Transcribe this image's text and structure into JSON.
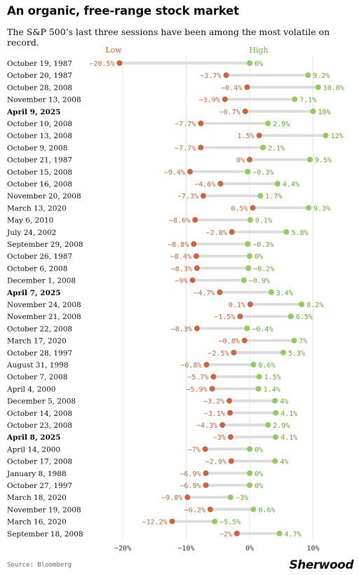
{
  "title": "An organic, free-range stock market",
  "subtitle": "The S&P 500’s last three sessions have been among the most volatile on record.",
  "source": "Source: Bloomberg",
  "brand": "Sherwood",
  "colors": {
    "low": "#d0633a",
    "high": "#8ccf5a",
    "bar": "#dddddd",
    "grid": "#e4e4e4",
    "text": "#111111"
  },
  "chart_data": {
    "type": "dot-range",
    "legend": {
      "low": "Low",
      "high": "High"
    },
    "xlim": [
      -25,
      15
    ],
    "x_ticks": [
      -20,
      -10,
      0,
      10
    ],
    "x_tick_labels": [
      "−20%",
      "−10%",
      "0%",
      "10%"
    ],
    "grid": true,
    "rows": [
      {
        "date": "October 19, 1987",
        "low": -20.5,
        "high": 0,
        "low_label": "−20.5%",
        "high_label": "0%",
        "bold": false
      },
      {
        "date": "October 20, 1987",
        "low": -3.7,
        "high": 9.2,
        "low_label": "−3.7%",
        "high_label": "9.2%",
        "bold": false
      },
      {
        "date": "October 28, 2008",
        "low": -0.4,
        "high": 10.8,
        "low_label": "−0.4%",
        "high_label": "10.8%",
        "bold": false
      },
      {
        "date": "November 13, 2008",
        "low": -3.9,
        "high": 7.1,
        "low_label": "−3.9%",
        "high_label": "7.1%",
        "bold": false
      },
      {
        "date": "April 9, 2025",
        "low": -0.7,
        "high": 10,
        "low_label": "−0.7%",
        "high_label": "10%",
        "bold": true
      },
      {
        "date": "October 10, 2008",
        "low": -7.7,
        "high": 2.9,
        "low_label": "−7.7%",
        "high_label": "2.9%",
        "bold": false
      },
      {
        "date": "October 13, 2008",
        "low": 1.5,
        "high": 12,
        "low_label": "1.5%",
        "high_label": "12%",
        "bold": false
      },
      {
        "date": "October 9, 2008",
        "low": -7.7,
        "high": 2.1,
        "low_label": "−7.7%",
        "high_label": "2.1%",
        "bold": false
      },
      {
        "date": "October 21, 1987",
        "low": 0,
        "high": 9.5,
        "low_label": "0%",
        "high_label": "9.5%",
        "bold": false
      },
      {
        "date": "October 15, 2008",
        "low": -9.4,
        "high": -0.3,
        "low_label": "−9.4%",
        "high_label": "−0.3%",
        "bold": false
      },
      {
        "date": "October 16, 2008",
        "low": -4.6,
        "high": 4.4,
        "low_label": "−4.6%",
        "high_label": "4.4%",
        "bold": false
      },
      {
        "date": "November 20, 2008",
        "low": -7.3,
        "high": 1.7,
        "low_label": "−7.3%",
        "high_label": "1.7%",
        "bold": false
      },
      {
        "date": "March 13, 2020",
        "low": 0.5,
        "high": 9.3,
        "low_label": "0.5%",
        "high_label": "9.3%",
        "bold": false
      },
      {
        "date": "May 6, 2010",
        "low": -8.6,
        "high": 0.1,
        "low_label": "−8.6%",
        "high_label": "0.1%",
        "bold": false
      },
      {
        "date": "July 24, 2002",
        "low": -2.8,
        "high": 5.8,
        "low_label": "−2.8%",
        "high_label": "5.8%",
        "bold": false
      },
      {
        "date": "September 29, 2008",
        "low": -8.8,
        "high": -0.3,
        "low_label": "−8.8%",
        "high_label": "−0.3%",
        "bold": false
      },
      {
        "date": "October 26, 1987",
        "low": -8.4,
        "high": 0,
        "low_label": "−8.4%",
        "high_label": "0%",
        "bold": false
      },
      {
        "date": "October 6, 2008",
        "low": -8.3,
        "high": -0.2,
        "low_label": "−8.3%",
        "high_label": "−0.2%",
        "bold": false
      },
      {
        "date": "December 1, 2008",
        "low": -9,
        "high": -0.9,
        "low_label": "−9%",
        "high_label": "−0.9%",
        "bold": false
      },
      {
        "date": "April 7, 2025",
        "low": -4.7,
        "high": 3.4,
        "low_label": "−4.7%",
        "high_label": "3.4%",
        "bold": true
      },
      {
        "date": "November 24, 2008",
        "low": 0.1,
        "high": 8.2,
        "low_label": "0.1%",
        "high_label": "8.2%",
        "bold": false
      },
      {
        "date": "November 21, 2008",
        "low": -1.5,
        "high": 6.5,
        "low_label": "−1.5%",
        "high_label": "6.5%",
        "bold": false
      },
      {
        "date": "October 22, 2008",
        "low": -8.3,
        "high": -0.4,
        "low_label": "−8.3%",
        "high_label": "−0.4%",
        "bold": false
      },
      {
        "date": "March 17, 2020",
        "low": -0.8,
        "high": 7,
        "low_label": "−0.8%",
        "high_label": "7%",
        "bold": false
      },
      {
        "date": "October 28, 1997",
        "low": -2.5,
        "high": 5.3,
        "low_label": "−2.5%",
        "high_label": "5.3%",
        "bold": false
      },
      {
        "date": "August 31, 1998",
        "low": -6.8,
        "high": 0.6,
        "low_label": "−6.8%",
        "high_label": "0.6%",
        "bold": false
      },
      {
        "date": "October 7, 2008",
        "low": -5.7,
        "high": 1.5,
        "low_label": "−5.7%",
        "high_label": "1.5%",
        "bold": false
      },
      {
        "date": "April 4, 2000",
        "low": -5.9,
        "high": 1.4,
        "low_label": "−5.9%",
        "high_label": "1.4%",
        "bold": false
      },
      {
        "date": "December 5, 2008",
        "low": -3.2,
        "high": 4,
        "low_label": "−3.2%",
        "high_label": "4%",
        "bold": false
      },
      {
        "date": "October 14, 2008",
        "low": -3.1,
        "high": 4.1,
        "low_label": "−3.1%",
        "high_label": "4.1%",
        "bold": false
      },
      {
        "date": "October 23, 2008",
        "low": -4.3,
        "high": 2.9,
        "low_label": "−4.3%",
        "high_label": "2.9%",
        "bold": false
      },
      {
        "date": "April 8, 2025",
        "low": -3,
        "high": 4.1,
        "low_label": "−3%",
        "high_label": "4.1%",
        "bold": true
      },
      {
        "date": "April 14, 2000",
        "low": -7,
        "high": 0,
        "low_label": "−7%",
        "high_label": "0%",
        "bold": false
      },
      {
        "date": "October 17, 2008",
        "low": -2.9,
        "high": 4,
        "low_label": "−2.9%",
        "high_label": "4%",
        "bold": false
      },
      {
        "date": "January 8, 1988",
        "low": -6.9,
        "high": 0,
        "low_label": "−6.9%",
        "high_label": "0%",
        "bold": false
      },
      {
        "date": "October 27, 1997",
        "low": -6.9,
        "high": 0,
        "low_label": "−6.9%",
        "high_label": "0%",
        "bold": false
      },
      {
        "date": "March 18, 2020",
        "low": -9.8,
        "high": -3,
        "low_label": "−9.8%",
        "high_label": "−3%",
        "bold": false
      },
      {
        "date": "November 19, 2008",
        "low": -6.2,
        "high": 0.6,
        "low_label": "−6.2%",
        "high_label": "0.6%",
        "bold": false
      },
      {
        "date": "March 16, 2020",
        "low": -12.2,
        "high": -5.5,
        "low_label": "−12.2%",
        "high_label": "−5.5%",
        "bold": false
      },
      {
        "date": "September 18, 2008",
        "low": -2,
        "high": 4.7,
        "low_label": "−2%",
        "high_label": "4.7%",
        "bold": false
      }
    ]
  }
}
